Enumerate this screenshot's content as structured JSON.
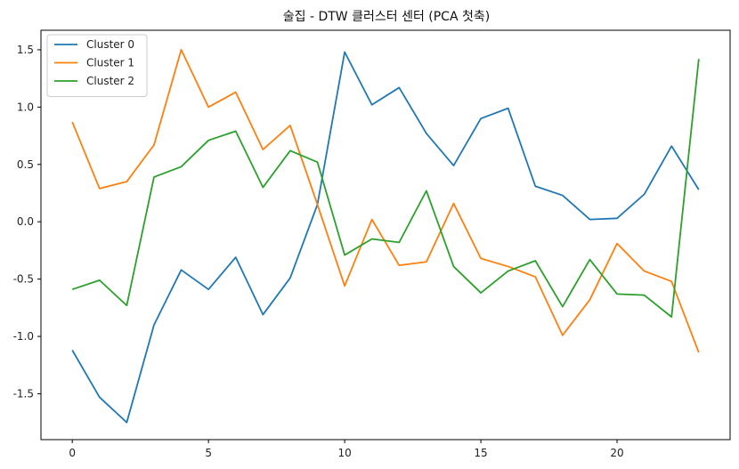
{
  "chart_data": {
    "type": "line",
    "title": "술집 - DTW 클러스터 센터 (PCA 첫축)",
    "xlabel": "",
    "ylabel": "",
    "xlim": [
      -1.15,
      24.15
    ],
    "ylim": [
      -1.9,
      1.67
    ],
    "xticks": [
      0,
      5,
      10,
      15,
      20
    ],
    "yticks": [
      -1.5,
      -1.0,
      -0.5,
      0.0,
      0.5,
      1.0,
      1.5
    ],
    "ytick_labels": [
      "-1.5",
      "-1.0",
      "-0.5",
      "0.0",
      "0.5",
      "1.0",
      "1.5"
    ],
    "grid": false,
    "legend_position": "top-left",
    "x": [
      0,
      1,
      2,
      3,
      4,
      5,
      6,
      7,
      8,
      9,
      10,
      11,
      12,
      13,
      14,
      15,
      16,
      17,
      18,
      19,
      20,
      21,
      22,
      23
    ],
    "series": [
      {
        "name": "Cluster 0",
        "color": "#1f77b4",
        "values": [
          -1.12,
          -1.53,
          -1.75,
          -0.9,
          -0.42,
          -0.59,
          -0.31,
          -0.81,
          -0.49,
          0.15,
          1.48,
          1.02,
          1.17,
          0.77,
          0.49,
          0.9,
          0.99,
          0.31,
          0.23,
          0.02,
          0.03,
          0.24,
          0.66,
          0.28
        ]
      },
      {
        "name": "Cluster 1",
        "color": "#ff7f0e",
        "values": [
          0.87,
          0.29,
          0.35,
          0.67,
          1.5,
          1.0,
          1.13,
          0.63,
          0.84,
          0.15,
          -0.56,
          0.02,
          -0.38,
          -0.35,
          0.16,
          -0.32,
          -0.39,
          -0.48,
          -0.99,
          -0.68,
          -0.19,
          -0.43,
          -0.52,
          -1.14
        ]
      },
      {
        "name": "Cluster 2",
        "color": "#2ca02c",
        "values": [
          -0.59,
          -0.51,
          -0.73,
          0.39,
          0.48,
          0.71,
          0.79,
          0.3,
          0.62,
          0.52,
          -0.29,
          -0.15,
          -0.18,
          0.27,
          -0.39,
          -0.62,
          -0.43,
          -0.34,
          -0.74,
          -0.33,
          -0.63,
          -0.64,
          -0.83,
          1.42
        ]
      }
    ]
  }
}
